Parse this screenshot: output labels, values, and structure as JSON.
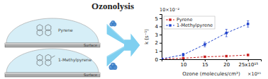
{
  "chart_data": {
    "type": "line",
    "title": "Ozonolysis",
    "x_label": "Ozone (molecules/cm³)",
    "y_label": "k (s⁻¹)",
    "x": [
      5,
      10,
      15,
      20,
      25
    ],
    "series": [
      {
        "name": "Pyrene",
        "color": "#cc2222",
        "marker": "square",
        "line_style": "dashed",
        "values": [
          0.05,
          0.12,
          0.3,
          0.38,
          0.52
        ],
        "errors": [
          0.03,
          0.06,
          0.08,
          0.07,
          0.09
        ]
      },
      {
        "name": "1-Methylpyrene",
        "color": "#2244cc",
        "marker": "square",
        "line_style": "dashed",
        "values": [
          0.05,
          0.55,
          1.8,
          3.2,
          4.3
        ],
        "errors": [
          0.04,
          0.18,
          0.28,
          0.45,
          0.38
        ]
      }
    ],
    "xlim": [
      5,
      28
    ],
    "xticks": [
      10,
      15,
      20,
      {
        "value": 25,
        "label": "25x10¹⁵"
      }
    ],
    "ylim": [
      0,
      5.5
    ],
    "yticks": [
      0,
      1,
      2,
      3,
      4,
      5
    ],
    "grid": false,
    "legend": "upper left",
    "annotations": [
      "Pyrene",
      "Surface",
      "1-Methylpyrene",
      "Surface",
      "×10¹⁵",
      "10×10⁻²"
    ]
  }
}
